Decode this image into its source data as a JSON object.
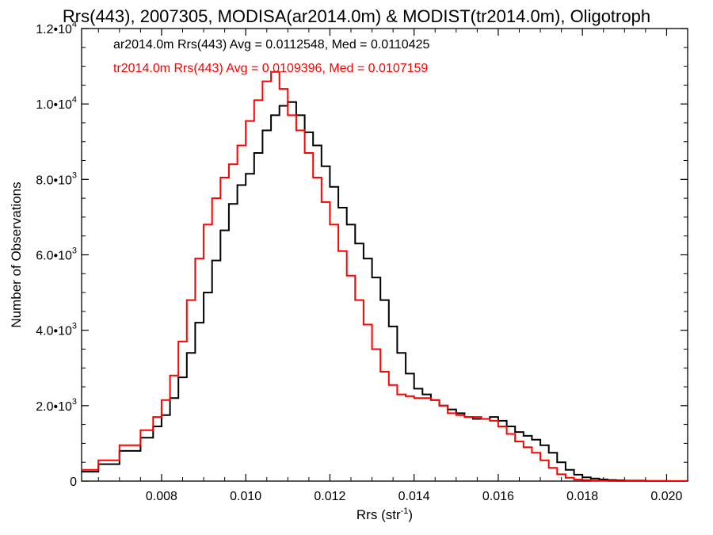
{
  "chart_data": {
    "type": "line",
    "title": "Rrs(443), 2007305, MODISA(ar2014.0m) & MODIST(tr2014.0m), Oligotroph",
    "xlabel": "Rrs (str",
    "xlabel_sup": "-1",
    "xlabel_suffix": ")",
    "ylabel": "Number of Observations",
    "xlim": [
      0.0061,
      0.0205
    ],
    "ylim": [
      0,
      12000
    ],
    "x_ticks": [
      {
        "value": 0.008,
        "label": "0.008"
      },
      {
        "value": 0.01,
        "label": "0.010"
      },
      {
        "value": 0.012,
        "label": "0.012"
      },
      {
        "value": 0.014,
        "label": "0.014"
      },
      {
        "value": 0.016,
        "label": "0.016"
      },
      {
        "value": 0.018,
        "label": "0.018"
      },
      {
        "value": 0.02,
        "label": "0.020"
      }
    ],
    "y_ticks": [
      {
        "value": 0,
        "label": "0",
        "exp": ""
      },
      {
        "value": 2000,
        "label": "2.0•10",
        "exp": "3"
      },
      {
        "value": 4000,
        "label": "4.0•10",
        "exp": "3"
      },
      {
        "value": 6000,
        "label": "6.0•10",
        "exp": "3"
      },
      {
        "value": 8000,
        "label": "8.0•10",
        "exp": "3"
      },
      {
        "value": 10000,
        "label": "1.0•10",
        "exp": "4"
      },
      {
        "value": 12000,
        "label": "1.2•10",
        "exp": "4"
      }
    ],
    "grid": false,
    "legend_position": "top-left",
    "series": [
      {
        "legend_text": "ar2014.0m Rrs(443) Avg = 0.0112548, Med = 0.0110425",
        "color": "#000000",
        "x": [
          0.0061,
          0.0065,
          0.007,
          0.0075,
          0.0078,
          0.008,
          0.0082,
          0.0084,
          0.0086,
          0.0088,
          0.009,
          0.0092,
          0.0094,
          0.0096,
          0.0098,
          0.01,
          0.0102,
          0.0104,
          0.0106,
          0.0108,
          0.011,
          0.0112,
          0.0114,
          0.0116,
          0.0118,
          0.012,
          0.0122,
          0.0124,
          0.0126,
          0.0128,
          0.013,
          0.0132,
          0.0134,
          0.0136,
          0.0138,
          0.014,
          0.0142,
          0.0144,
          0.0146,
          0.0148,
          0.015,
          0.0152,
          0.0154,
          0.0156,
          0.0158,
          0.016,
          0.0162,
          0.0164,
          0.0166,
          0.0168,
          0.017,
          0.0172,
          0.0174,
          0.0176,
          0.0178,
          0.018,
          0.0182,
          0.0184,
          0.0186,
          0.0188,
          0.019,
          0.0195,
          0.02,
          0.0205
        ],
        "y": [
          250,
          450,
          800,
          1150,
          1450,
          1750,
          2200,
          2750,
          3400,
          4200,
          5000,
          5850,
          6650,
          7350,
          7850,
          8150,
          8700,
          9300,
          9700,
          9950,
          10050,
          9700,
          9250,
          8900,
          8350,
          7800,
          7250,
          6800,
          6300,
          5900,
          5400,
          4800,
          4100,
          3400,
          2850,
          2450,
          2300,
          2150,
          2000,
          1900,
          1800,
          1700,
          1650,
          1650,
          1700,
          1600,
          1450,
          1300,
          1200,
          1100,
          950,
          750,
          500,
          300,
          170,
          100,
          70,
          45,
          30,
          20,
          12,
          5,
          2,
          0
        ]
      },
      {
        "legend_text": "tr2014.0m Rrs(443) Avg = 0.0109396, Med = 0.0107159",
        "color": "#ff0000",
        "x": [
          0.0061,
          0.0065,
          0.007,
          0.0075,
          0.0078,
          0.008,
          0.0082,
          0.0084,
          0.0086,
          0.0088,
          0.009,
          0.0092,
          0.0094,
          0.0096,
          0.0098,
          0.01,
          0.0102,
          0.0104,
          0.0106,
          0.0108,
          0.011,
          0.0112,
          0.0114,
          0.0116,
          0.0118,
          0.012,
          0.0122,
          0.0124,
          0.0126,
          0.0128,
          0.013,
          0.0132,
          0.0134,
          0.0136,
          0.0138,
          0.014,
          0.0142,
          0.0144,
          0.0146,
          0.0148,
          0.015,
          0.0152,
          0.0154,
          0.0156,
          0.0158,
          0.016,
          0.0162,
          0.0164,
          0.0166,
          0.0168,
          0.017,
          0.0172,
          0.0174,
          0.0176,
          0.0178,
          0.018,
          0.0182,
          0.0184,
          0.0186,
          0.0188,
          0.019,
          0.0195,
          0.02,
          0.0205
        ],
        "y": [
          300,
          550,
          950,
          1350,
          1700,
          2150,
          2800,
          3700,
          4800,
          5900,
          6800,
          7500,
          8050,
          8400,
          8900,
          9550,
          10100,
          10600,
          10850,
          10400,
          9700,
          9300,
          8700,
          8050,
          7400,
          6800,
          6100,
          5450,
          4800,
          4150,
          3500,
          2900,
          2550,
          2300,
          2250,
          2200,
          2200,
          2150,
          2000,
          1800,
          1750,
          1700,
          1700,
          1650,
          1600,
          1450,
          1250,
          1050,
          900,
          750,
          550,
          350,
          180,
          90,
          40,
          25,
          15,
          10,
          6,
          3,
          2,
          1,
          0,
          0
        ]
      }
    ]
  }
}
